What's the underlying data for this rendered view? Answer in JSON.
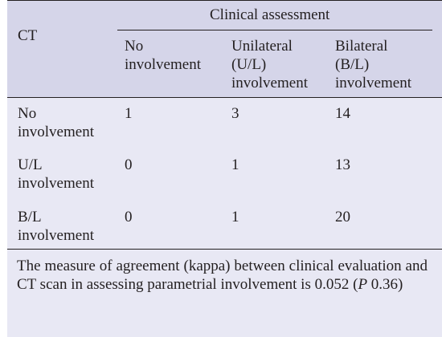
{
  "table": {
    "stub_header": "CT",
    "spanner_header": "Clinical assessment",
    "columns": [
      "No\ninvolvement",
      "Unilateral\n(U/L)\ninvolvement",
      "Bilateral\n(B/L)\ninvolvement"
    ],
    "rows": [
      {
        "label": "No\ninvolvement",
        "values": [
          "1",
          "3",
          "14"
        ]
      },
      {
        "label": "U/L\ninvolvement",
        "values": [
          "0",
          "1",
          "13"
        ]
      },
      {
        "label": "B/L\ninvolvement",
        "values": [
          "0",
          "1",
          "20"
        ]
      }
    ]
  },
  "footnote": {
    "text": "The measure of agreement (kappa) between clinical evaluation and CT scan in assessing parametrial involvement is 0.052 (",
    "p_label": "P",
    "p_value": " 0.36)"
  }
}
